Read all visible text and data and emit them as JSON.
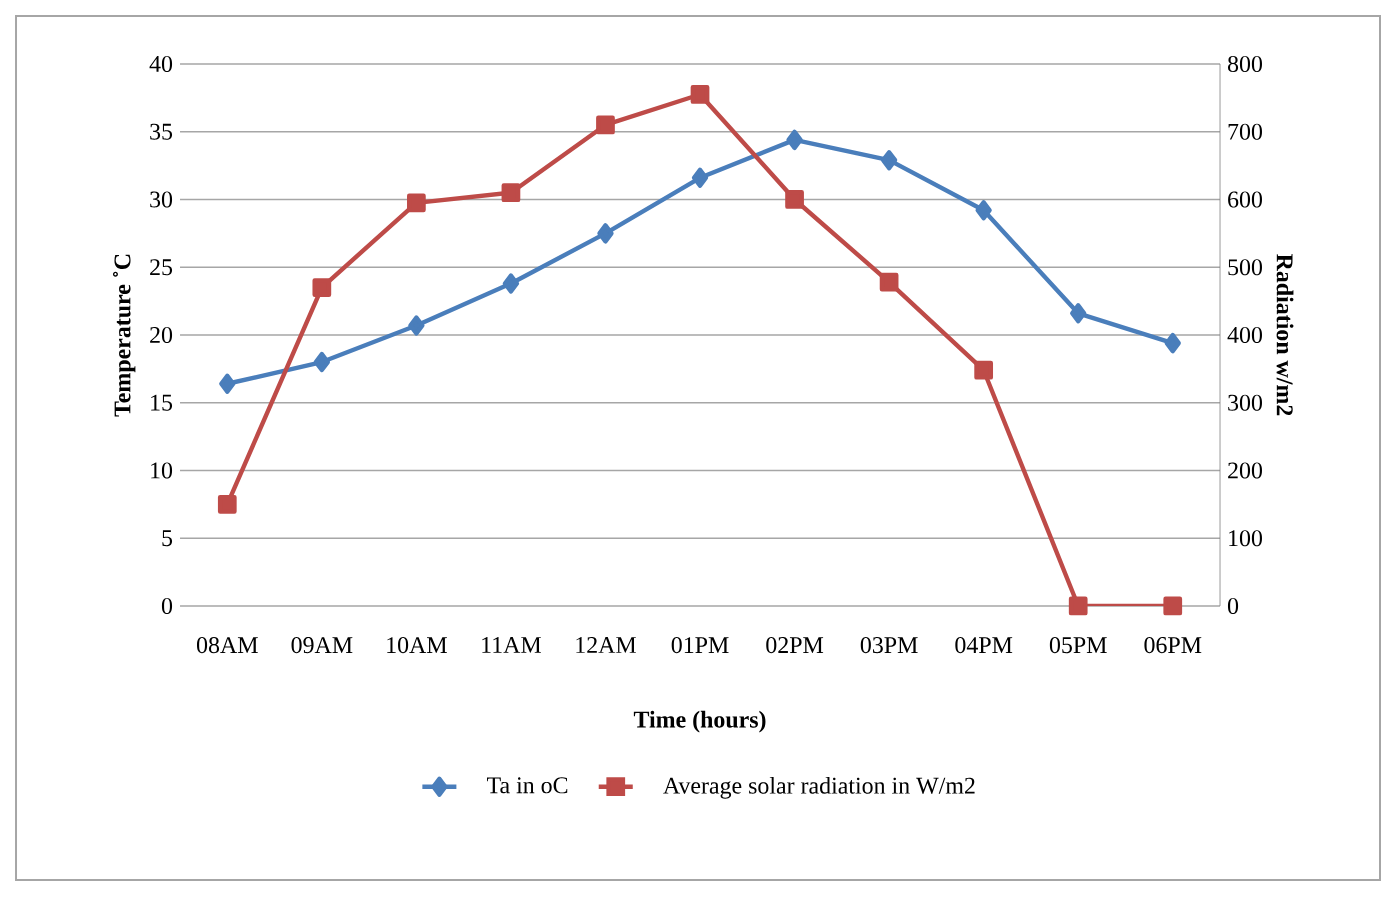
{
  "chart_data": {
    "type": "line",
    "xlabel": "Time (hours)",
    "ylabel": "Temperature ˚C",
    "y2label": "Radiation w/m2",
    "categories": [
      "08AM",
      "09AM",
      "10AM",
      "11AM",
      "12AM",
      "01PM",
      "02PM",
      "03PM",
      "04PM",
      "05PM",
      "06PM"
    ],
    "series": [
      {
        "name": "Ta in oC",
        "color": "#4a7ebb",
        "marker": "diamond",
        "values": [
          16.4,
          18.0,
          20.7,
          23.8,
          27.5,
          31.6,
          34.4,
          32.9,
          29.2,
          21.6,
          19.4
        ]
      },
      {
        "name": "Average solar radiation in W/m2",
        "color": "#be4b48",
        "marker": "square",
        "axis": "y2",
        "values": [
          150,
          470,
          595,
          610,
          710,
          755,
          600,
          478,
          348,
          0,
          0
        ]
      }
    ],
    "ylim": [
      0,
      40
    ],
    "yticks": [
      0,
      5,
      10,
      15,
      20,
      25,
      30,
      35,
      40
    ],
    "y2lim": [
      0,
      800
    ],
    "y2ticks": [
      0,
      100,
      200,
      300,
      400,
      500,
      600,
      700,
      800
    ],
    "grid": "y",
    "legend": "bottom"
  }
}
